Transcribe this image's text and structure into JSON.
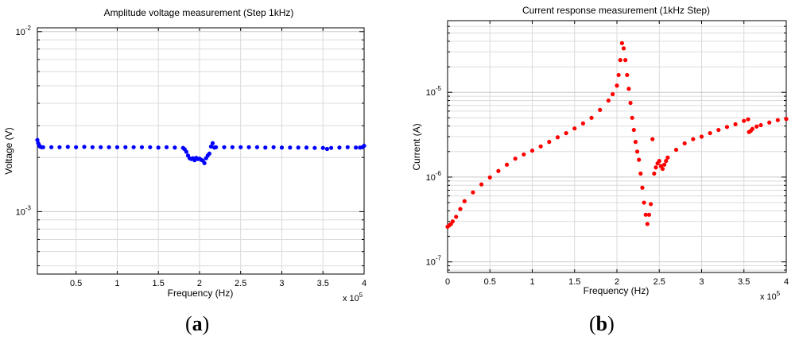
{
  "chart_data": [
    {
      "id": "a",
      "type": "scatter",
      "title": "Amplitude voltage measurement (Step 1kHz)",
      "xlabel": "Frequency (Hz)",
      "ylabel": "Voltage (V)",
      "x_exponent_label": "x 10",
      "x_exponent": "5",
      "panel_letter": "a",
      "xlim": [
        3000,
        400000
      ],
      "ylim": [
        0.00045,
        0.0105
      ],
      "yscale": "log",
      "grid": true,
      "xticks": [
        50000,
        100000,
        150000,
        200000,
        250000,
        300000,
        350000,
        400000
      ],
      "xtick_labels": [
        "0.5",
        "1",
        "1.5",
        "2",
        "2.5",
        "3",
        "3.5",
        "4"
      ],
      "ytick_labels": [
        {
          "base": "10",
          "exp": "-3",
          "value": 0.001
        },
        {
          "base": "10",
          "exp": "-2",
          "value": 0.01
        }
      ],
      "color": "#0000ff",
      "series": [
        {
          "x": [
            3000,
            4000,
            5000,
            6000,
            8000,
            10000,
            20000,
            30000,
            40000,
            50000,
            60000,
            70000,
            80000,
            90000,
            100000,
            110000,
            120000,
            130000,
            140000,
            150000,
            160000,
            170000,
            180000,
            182000,
            184000,
            186000,
            188000,
            190000,
            192000,
            194000,
            196000,
            198000,
            200000,
            202000,
            204000,
            206000,
            208000,
            210000,
            212000,
            214000,
            216000,
            218000,
            220000,
            230000,
            240000,
            250000,
            260000,
            270000,
            280000,
            290000,
            300000,
            310000,
            320000,
            330000,
            340000,
            350000,
            355000,
            360000,
            370000,
            380000,
            390000,
            395000,
            398000,
            400000
          ],
          "values": [
            0.0025,
            0.0024,
            0.00235,
            0.0023,
            0.00228,
            0.00228,
            0.00228,
            0.00228,
            0.00229,
            0.00228,
            0.00229,
            0.00228,
            0.00228,
            0.00228,
            0.00228,
            0.00228,
            0.00228,
            0.00228,
            0.00228,
            0.00227,
            0.00228,
            0.00227,
            0.00226,
            0.00222,
            0.00215,
            0.00205,
            0.00198,
            0.00196,
            0.00198,
            0.00193,
            0.00199,
            0.00196,
            0.00197,
            0.00194,
            0.00192,
            0.00186,
            0.00198,
            0.00205,
            0.0021,
            0.0023,
            0.0024,
            0.00227,
            0.00228,
            0.00228,
            0.00228,
            0.00228,
            0.00228,
            0.00228,
            0.00227,
            0.00228,
            0.00227,
            0.00227,
            0.00227,
            0.00227,
            0.00226,
            0.00226,
            0.00223,
            0.00226,
            0.00227,
            0.00228,
            0.00227,
            0.00227,
            0.00228,
            0.00232
          ]
        }
      ]
    },
    {
      "id": "b",
      "type": "scatter",
      "title": "Current response measurement (1kHz Step)",
      "xlabel": "Frequency (Hz)",
      "ylabel": "Current (A)",
      "x_exponent_label": "x 10",
      "x_exponent": "5",
      "panel_letter": "b",
      "xlim": [
        0,
        400000
      ],
      "ylim": [
        7.5e-08,
        7e-05
      ],
      "yscale": "log",
      "grid": true,
      "xticks": [
        0,
        50000,
        100000,
        150000,
        200000,
        250000,
        300000,
        350000,
        400000
      ],
      "xtick_labels": [
        "0",
        "0.5",
        "1",
        "1.5",
        "2",
        "2.5",
        "3",
        "3.5",
        "4"
      ],
      "ytick_labels": [
        {
          "base": "10",
          "exp": "-7",
          "value": 1e-07
        },
        {
          "base": "10",
          "exp": "-6",
          "value": 1e-06
        },
        {
          "base": "10",
          "exp": "-5",
          "value": 1e-05
        }
      ],
      "color": "#ff0000",
      "series": [
        {
          "x": [
            0,
            2000,
            4000,
            6000,
            10000,
            15000,
            20000,
            30000,
            40000,
            50000,
            60000,
            70000,
            80000,
            90000,
            100000,
            110000,
            120000,
            130000,
            140000,
            150000,
            160000,
            170000,
            180000,
            190000,
            195000,
            200000,
            202000,
            204000,
            206000,
            208000,
            210000,
            212000,
            214000,
            216000,
            218000,
            220000,
            222000,
            224000,
            226000,
            228000,
            230000,
            232000,
            234000,
            236000,
            238000,
            240000,
            242000,
            244000,
            246000,
            248000,
            250000,
            252000,
            254000,
            256000,
            258000,
            260000,
            270000,
            280000,
            290000,
            300000,
            310000,
            320000,
            330000,
            340000,
            350000,
            355000,
            356000,
            358000,
            360000,
            365000,
            370000,
            380000,
            390000,
            400000
          ],
          "values": [
            2.6e-07,
            2.7e-07,
            2.8e-07,
            3e-07,
            3.4e-07,
            4.2e-07,
            5.2e-07,
            6.6e-07,
            8.2e-07,
            9.9e-07,
            1.18e-06,
            1.4e-06,
            1.65e-06,
            1.85e-06,
            2.05e-06,
            2.3e-06,
            2.6e-06,
            2.95e-06,
            3.3e-06,
            3.75e-06,
            4.3e-06,
            5e-06,
            6.2e-06,
            8e-06,
            9.5e-06,
            1.2e-05,
            1.6e-05,
            2.4e-05,
            3.8e-05,
            3.3e-05,
            2.4e-05,
            1.6e-05,
            1.1e-05,
            7.5e-06,
            5e-06,
            3.6e-06,
            2.6e-06,
            2e-06,
            1.6e-06,
            1.1e-06,
            7.5e-07,
            5e-07,
            3.6e-07,
            2.8e-07,
            3.6e-07,
            4.8e-07,
            2.8e-06,
            1.1e-06,
            1.3e-06,
            1.45e-06,
            1.55e-06,
            1.35e-06,
            1.25e-06,
            1.4e-06,
            1.55e-06,
            1.7e-06,
            2.1e-06,
            2.5e-06,
            2.8e-06,
            3e-06,
            3.3e-06,
            3.6e-06,
            3.9e-06,
            4.2e-06,
            4.6e-06,
            4.8e-06,
            3.4e-06,
            3.5e-06,
            3.7e-06,
            3.95e-06,
            4.1e-06,
            4.4e-06,
            4.7e-06,
            4.85e-06
          ]
        }
      ]
    }
  ]
}
